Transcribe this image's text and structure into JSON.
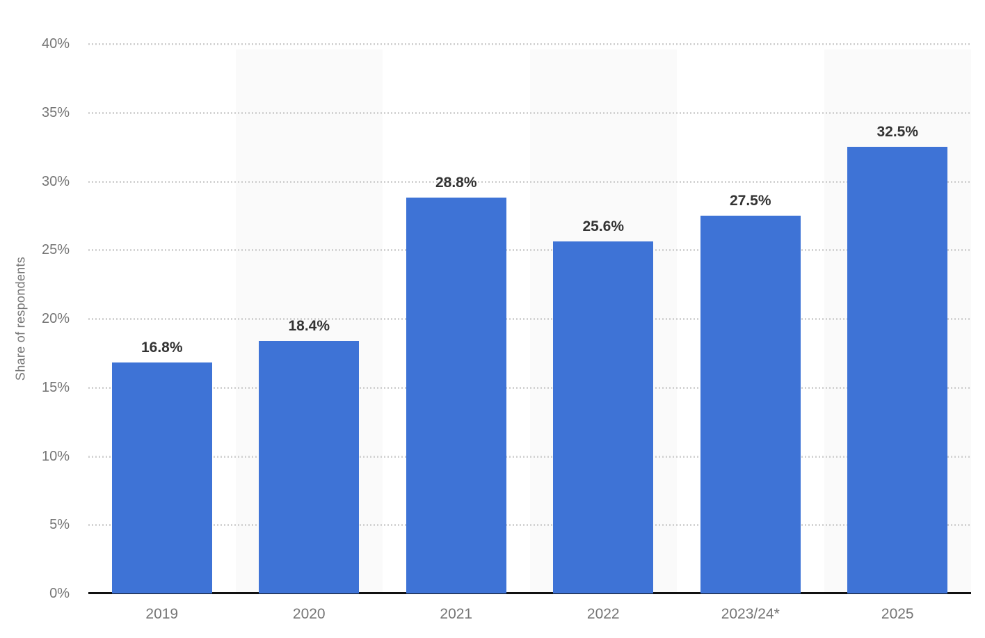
{
  "chart_data": {
    "type": "bar",
    "title": "",
    "categories": [
      "2019",
      "2020",
      "2021",
      "2022",
      "2023/24*",
      "2025"
    ],
    "values": [
      16.8,
      18.4,
      28.8,
      25.6,
      27.5,
      32.5
    ],
    "value_labels": [
      "16.8%",
      "18.4%",
      "28.8%",
      "25.6%",
      "27.5%",
      "32.5%"
    ],
    "xlabel": "",
    "ylabel": "Share of respondents",
    "ylim": [
      0,
      40
    ],
    "ytick_step": 5,
    "ytick_labels": [
      "0%",
      "5%",
      "10%",
      "15%",
      "20%",
      "25%",
      "30%",
      "35%",
      "40%"
    ],
    "grid": "horizontal-dotted",
    "legend": "none",
    "shaded_column_indexes": [
      1,
      3,
      5
    ],
    "colors": {
      "bar": "#3e73d6",
      "column_band": "#fafafa",
      "gridline": "#cfcfcf",
      "axis_line": "#111111",
      "tick_text": "#757575",
      "value_label_text": "#333333"
    }
  }
}
